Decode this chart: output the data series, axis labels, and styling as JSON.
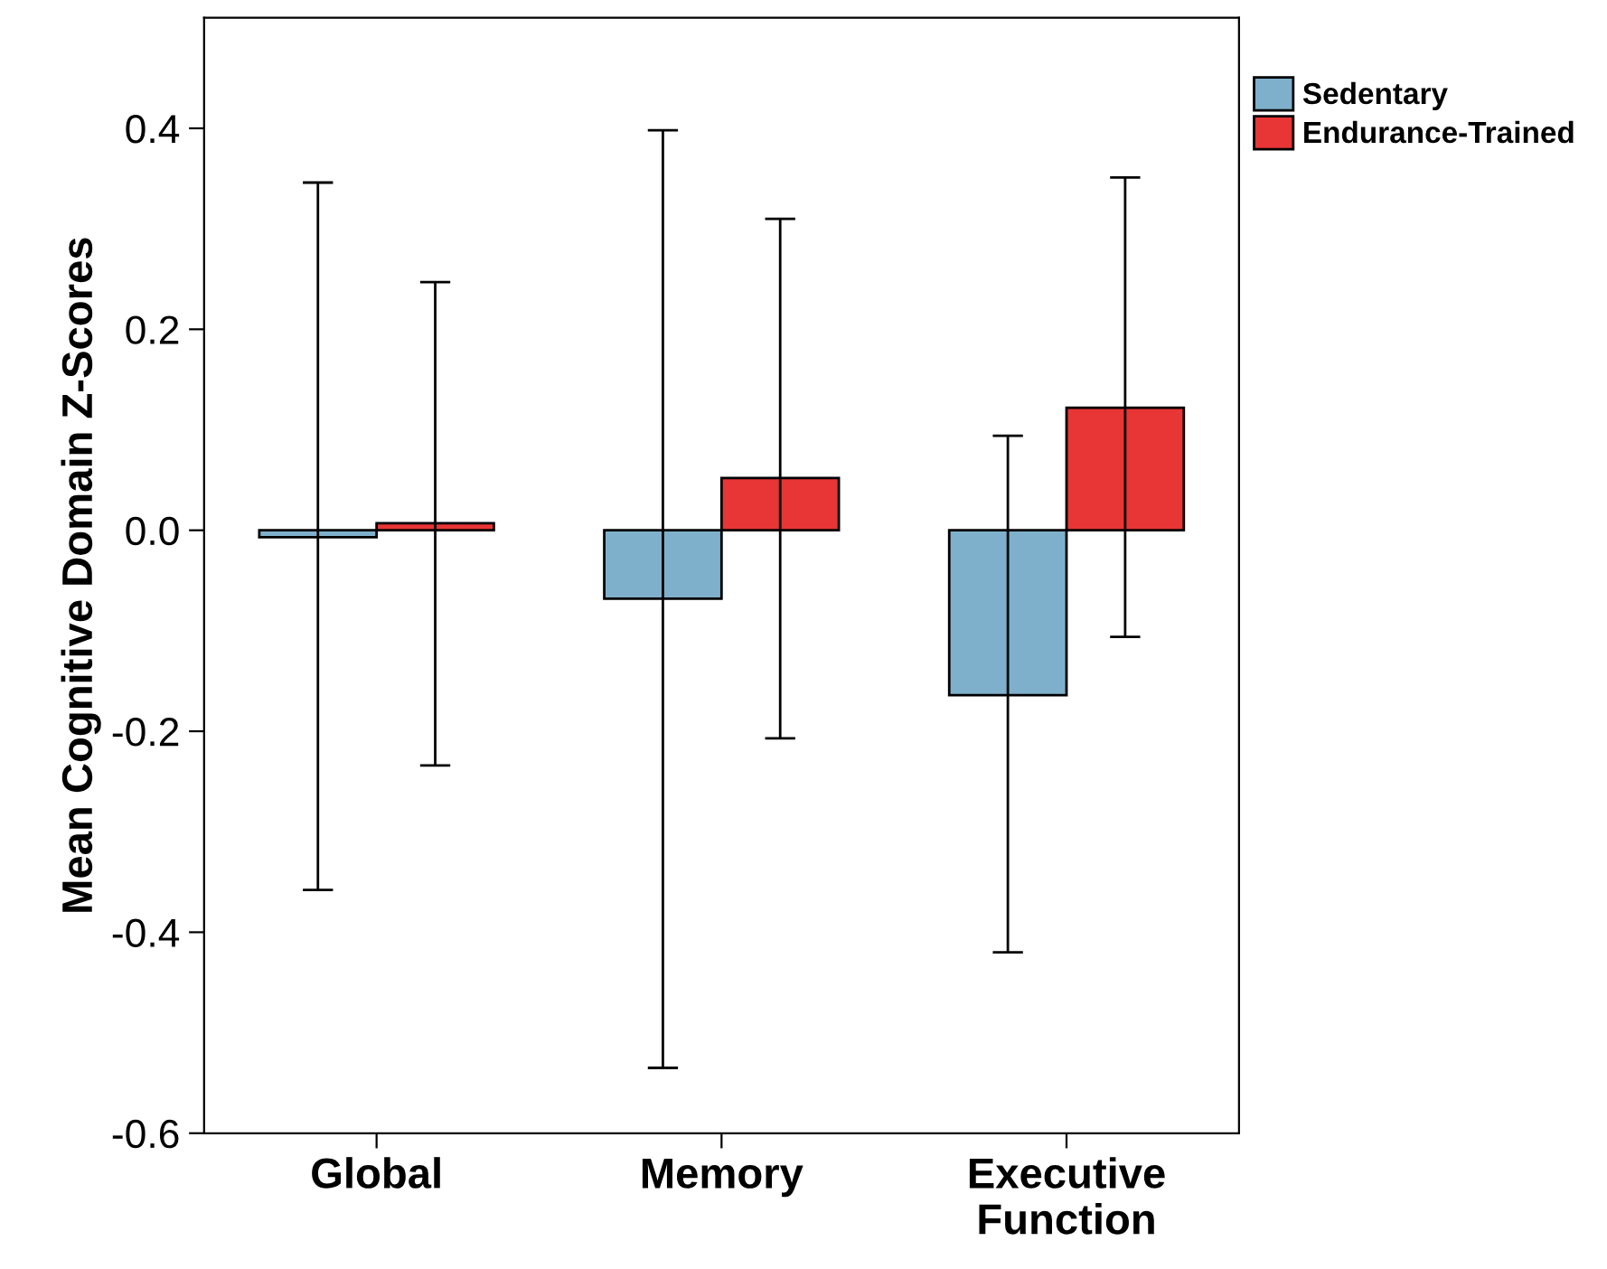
{
  "chart_data": {
    "type": "bar",
    "ylabel": "Mean Cognitive Domain Z-Scores",
    "categories": [
      "Global",
      "Memory",
      "Executive\nFunction"
    ],
    "series": [
      {
        "name": "Sedentary",
        "color": "#7fb0cb",
        "values": [
          -0.007,
          -0.068,
          -0.164
        ],
        "errors": [
          [
            -0.358,
            0.346
          ],
          [
            -0.535,
            0.398
          ],
          [
            -0.42,
            0.094
          ]
        ]
      },
      {
        "name": "Endurance-Trained",
        "color": "#e83535",
        "values": [
          0.007,
          0.052,
          0.122
        ],
        "errors": [
          [
            -0.234,
            0.247
          ],
          [
            -0.207,
            0.31
          ],
          [
            -0.106,
            0.351
          ]
        ]
      }
    ],
    "ylim": [
      -0.6,
      0.51
    ],
    "yticks": [
      {
        "value": -0.6,
        "label": "-0.6"
      },
      {
        "value": -0.4,
        "label": "-0.4"
      },
      {
        "value": -0.2,
        "label": "-0.2"
      },
      {
        "value": 0.0,
        "label": "0.0"
      },
      {
        "value": 0.2,
        "label": "0.2"
      },
      {
        "value": 0.4,
        "label": "0.4"
      }
    ],
    "legend": "top right",
    "grid": false
  }
}
